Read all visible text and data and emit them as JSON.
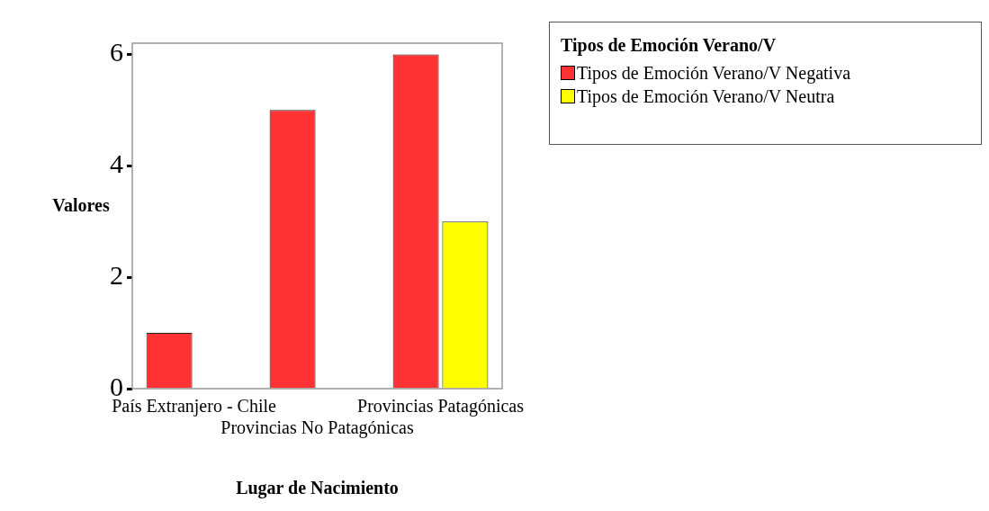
{
  "chart_data": {
    "type": "bar",
    "xlabel": "Lugar de Nacimiento",
    "ylabel": "Valores",
    "legend_title": "Tipos de Emoción Verano/V",
    "categories": [
      "País Extranjero - Chile",
      "Provincias No Patagónicas",
      "Provincias Patagónicas"
    ],
    "series": [
      {
        "name": "Tipos de Emoción Verano/V Negativa",
        "color": "#ff3333",
        "values": [
          1,
          5,
          6
        ]
      },
      {
        "name": "Tipos de Emoción Verano/V Neutra",
        "color": "#ffff00",
        "values": [
          null,
          null,
          3
        ]
      }
    ],
    "ylim": [
      0,
      6.2
    ],
    "yticks": [
      0,
      2,
      4,
      6
    ],
    "grid": false,
    "legend": "top right"
  }
}
